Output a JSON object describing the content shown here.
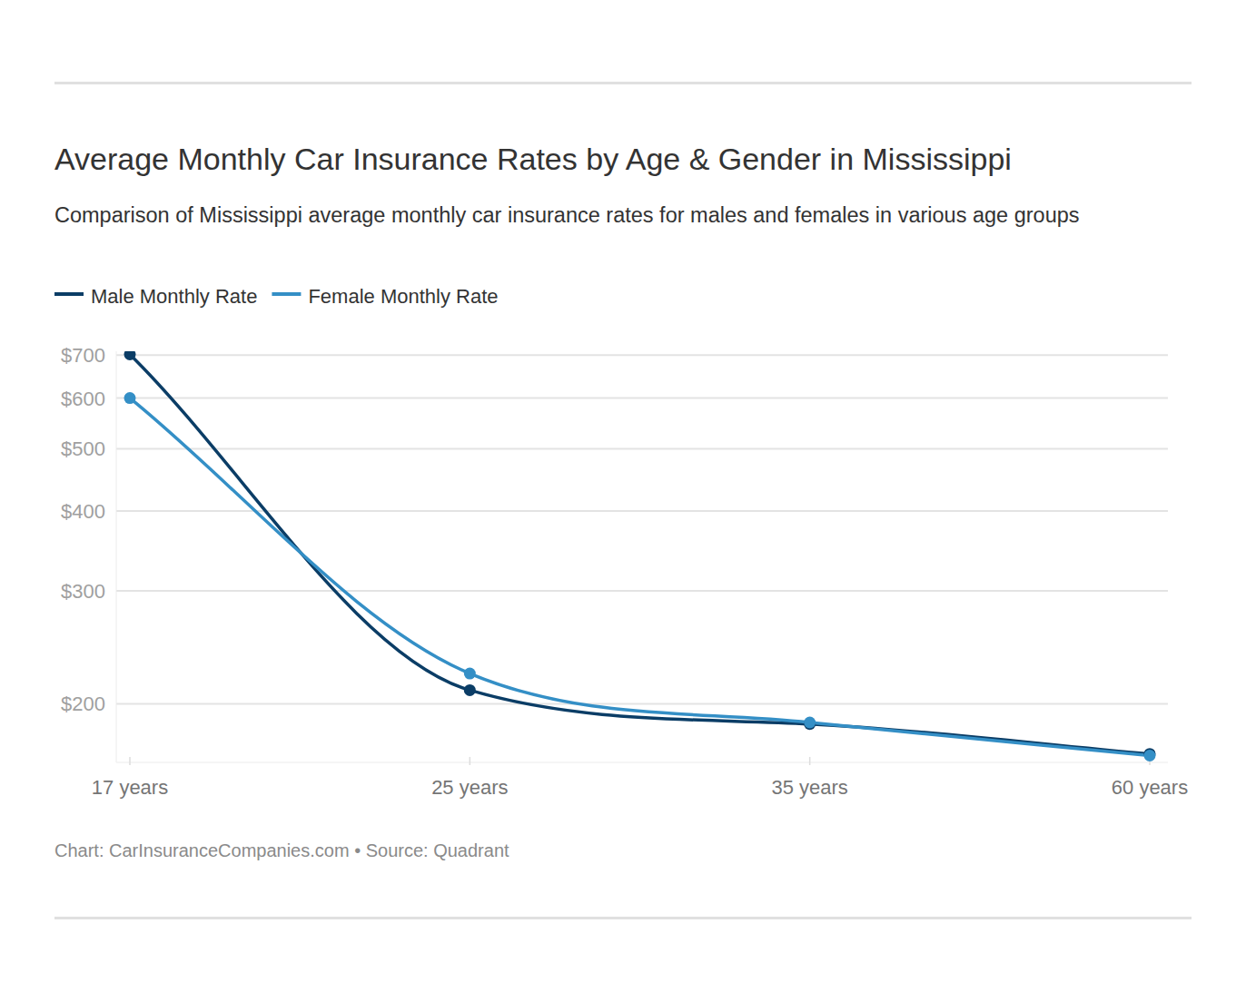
{
  "chart_data": {
    "type": "line",
    "title": "Average Monthly Car Insurance Rates by Age & Gender in Mississippi",
    "subtitle": "Comparison of Mississippi average monthly car insurance rates for males and females in various age groups",
    "source": "Chart: CarInsuranceCompanies.com • Source: Quadrant",
    "categories": [
      "17 years",
      "25 years",
      "35 years",
      "60 years"
    ],
    "series": [
      {
        "name": "Male Monthly Rate",
        "color": "#0b3d66",
        "marker": "circle",
        "values": [
          702,
          210,
          186,
          167
        ]
      },
      {
        "name": "Female Monthly Rate",
        "color": "#348fc6",
        "marker": "circle",
        "values": [
          600,
          223,
          187,
          166
        ]
      }
    ],
    "ylim": [
      162,
      710
    ],
    "yticks": [
      {
        "value": 200,
        "label": "$200"
      },
      {
        "value": 300,
        "label": "$300"
      },
      {
        "value": 400,
        "label": "$400"
      },
      {
        "value": 500,
        "label": "$500"
      },
      {
        "value": 600,
        "label": "$600"
      },
      {
        "value": 700,
        "label": "$700"
      }
    ],
    "log": "y",
    "grid": true,
    "legend": "top-left"
  }
}
